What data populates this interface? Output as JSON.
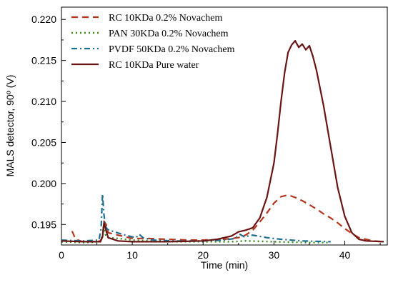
{
  "chart_data": {
    "type": "line",
    "xlabel": "Time (min)",
    "ylabel": "MALS detector, 90º (V)",
    "xlim": [
      0,
      46
    ],
    "ylim": [
      0.1925,
      0.2215
    ],
    "xticks": [
      0,
      10,
      20,
      30,
      40
    ],
    "xtick_labels": [
      "0",
      "10",
      "20",
      "30",
      "40"
    ],
    "yticks": [
      0.195,
      0.2,
      0.205,
      0.21,
      0.215,
      0.22
    ],
    "ytick_labels": [
      "0.195",
      "0.200",
      "0.205",
      "0.210",
      "0.215",
      "0.220"
    ],
    "grid": false,
    "legend_position": "top-left",
    "series": [
      {
        "name": "RC 10KDa 0.2% Novachem",
        "color": "#b5361c",
        "dash": "dashed",
        "points": [
          [
            1.5,
            0.1942
          ],
          [
            2,
            0.1932
          ],
          [
            3,
            0.1929
          ],
          [
            4,
            0.1929
          ],
          [
            5.5,
            0.193
          ],
          [
            5.8,
            0.1935
          ],
          [
            6.0,
            0.1954
          ],
          [
            6.3,
            0.195
          ],
          [
            6.6,
            0.194
          ],
          [
            8,
            0.1937
          ],
          [
            10,
            0.1933
          ],
          [
            12,
            0.1933
          ],
          [
            15,
            0.1932
          ],
          [
            18,
            0.1931
          ],
          [
            20,
            0.1931
          ],
          [
            23,
            0.1932
          ],
          [
            25,
            0.1934
          ],
          [
            26,
            0.1937
          ],
          [
            27,
            0.1943
          ],
          [
            28,
            0.1953
          ],
          [
            29,
            0.1964
          ],
          [
            30,
            0.1976
          ],
          [
            31,
            0.1984
          ],
          [
            32,
            0.1986
          ],
          [
            33,
            0.1983
          ],
          [
            34,
            0.1979
          ],
          [
            35,
            0.1974
          ],
          [
            36,
            0.1969
          ],
          [
            37,
            0.1963
          ],
          [
            38,
            0.1958
          ],
          [
            39,
            0.1952
          ],
          [
            40,
            0.1945
          ],
          [
            41,
            0.1939
          ],
          [
            42,
            0.1934
          ],
          [
            44,
            0.193
          ],
          [
            45.5,
            0.1929
          ]
        ]
      },
      {
        "name": "PAN 30KDa 0.2% Novachem",
        "color": "#3a8a1e",
        "dash": "dotted",
        "points": [
          [
            0,
            0.1929
          ],
          [
            3,
            0.1928
          ],
          [
            5.5,
            0.1929
          ],
          [
            5.8,
            0.1937
          ],
          [
            6.0,
            0.1946
          ],
          [
            6.2,
            0.1938
          ],
          [
            6.5,
            0.1934
          ],
          [
            8,
            0.1933
          ],
          [
            10,
            0.1931
          ],
          [
            13,
            0.193
          ],
          [
            16,
            0.1929
          ],
          [
            20,
            0.1929
          ],
          [
            24,
            0.1929
          ],
          [
            26,
            0.193
          ],
          [
            30,
            0.1929
          ],
          [
            35,
            0.1928
          ],
          [
            38,
            0.1928
          ]
        ]
      },
      {
        "name": "PVDF 50KDa 0.2% Novachem",
        "color": "#1b6e8f",
        "dash": "dashdot",
        "points": [
          [
            0,
            0.1931
          ],
          [
            3,
            0.193
          ],
          [
            5.3,
            0.1931
          ],
          [
            5.6,
            0.1945
          ],
          [
            5.8,
            0.1987
          ],
          [
            6.0,
            0.1962
          ],
          [
            6.2,
            0.1948
          ],
          [
            6.5,
            0.1944
          ],
          [
            7.5,
            0.1941
          ],
          [
            9,
            0.1937
          ],
          [
            10.5,
            0.1934
          ],
          [
            11,
            0.1938
          ],
          [
            11.5,
            0.1934
          ],
          [
            13,
            0.1931
          ],
          [
            16,
            0.193
          ],
          [
            20,
            0.193
          ],
          [
            23,
            0.1931
          ],
          [
            24.5,
            0.1933
          ],
          [
            25.2,
            0.1938
          ],
          [
            25.8,
            0.1935
          ],
          [
            27,
            0.1937
          ],
          [
            29,
            0.1934
          ],
          [
            31,
            0.1932
          ],
          [
            34,
            0.193
          ],
          [
            38,
            0.1929
          ]
        ]
      },
      {
        "name": "RC 10KDa Pure water",
        "color": "#6b1414",
        "dash": "solid",
        "points": [
          [
            0,
            0.193
          ],
          [
            3,
            0.1929
          ],
          [
            5.5,
            0.1929
          ],
          [
            5.8,
            0.1935
          ],
          [
            6.0,
            0.1952
          ],
          [
            6.2,
            0.1946
          ],
          [
            6.6,
            0.1934
          ],
          [
            8,
            0.193
          ],
          [
            10,
            0.1929
          ],
          [
            15,
            0.1929
          ],
          [
            20,
            0.193
          ],
          [
            22,
            0.1932
          ],
          [
            24,
            0.1936
          ],
          [
            25,
            0.1941
          ],
          [
            26,
            0.1943
          ],
          [
            27,
            0.1946
          ],
          [
            28,
            0.1958
          ],
          [
            29,
            0.1983
          ],
          [
            30,
            0.2025
          ],
          [
            30.5,
            0.206
          ],
          [
            31,
            0.21
          ],
          [
            31.5,
            0.2135
          ],
          [
            32,
            0.216
          ],
          [
            32.5,
            0.2169
          ],
          [
            33,
            0.2174
          ],
          [
            33.5,
            0.2166
          ],
          [
            34,
            0.217
          ],
          [
            34.5,
            0.2163
          ],
          [
            35,
            0.2168
          ],
          [
            35.5,
            0.2155
          ],
          [
            36,
            0.2138
          ],
          [
            37,
            0.2095
          ],
          [
            38,
            0.2045
          ],
          [
            39,
            0.1995
          ],
          [
            40,
            0.196
          ],
          [
            41,
            0.194
          ],
          [
            42,
            0.1932
          ],
          [
            43,
            0.193
          ],
          [
            45.5,
            0.1929
          ]
        ]
      }
    ]
  }
}
